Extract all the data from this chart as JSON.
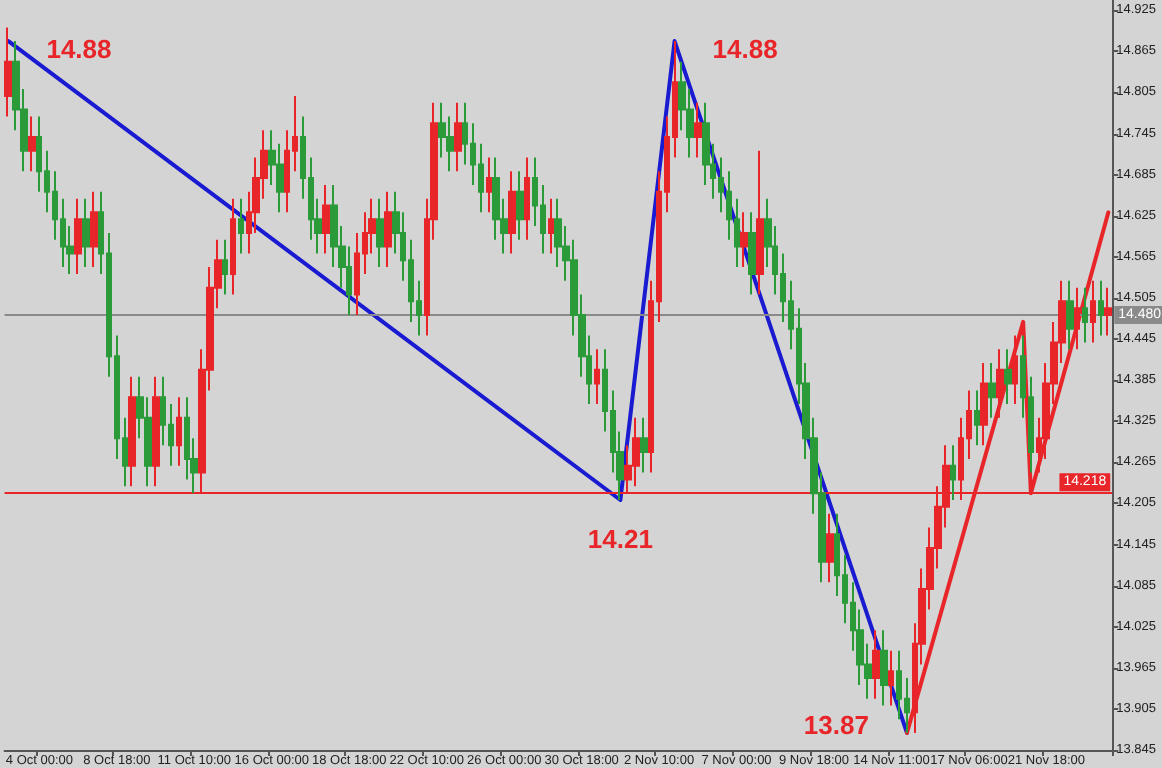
{
  "chart_data": {
    "type": "candlestick",
    "categories": [
      null,
      null,
      null,
      null,
      "4 Oct 00:00",
      null,
      null,
      null,
      null,
      null,
      null,
      null,
      null,
      null,
      "8 Oct 18:00",
      null,
      null,
      null,
      null,
      null,
      null,
      null,
      null,
      null,
      "11 Oct 10:00",
      null,
      null,
      null,
      null,
      null,
      null,
      null,
      null,
      null,
      "16 Oct 00:00",
      null,
      null,
      null,
      null,
      null,
      null,
      null,
      null,
      null,
      "18 Oct 18:00",
      null,
      null,
      null,
      null,
      null,
      null,
      null,
      null,
      null,
      "22 Oct 10:00",
      null,
      null,
      null,
      null,
      null,
      null,
      null,
      null,
      null,
      "26 Oct 00:00",
      null,
      null,
      null,
      null,
      null,
      null,
      null,
      null,
      null,
      "30 Oct 18:00",
      null,
      null,
      null,
      null,
      null,
      null,
      null,
      null,
      null,
      "2 Nov 10:00",
      null,
      null,
      null,
      null,
      null,
      null,
      null,
      null,
      null,
      "7 Nov 00:00",
      null,
      null,
      null,
      null,
      null,
      null,
      null,
      null,
      null,
      "9 Nov 18:00",
      null,
      null,
      null,
      null,
      null,
      null,
      null,
      null,
      null,
      "14 Nov 11:00",
      null,
      null,
      null,
      null,
      null,
      null,
      null,
      null,
      null,
      "17 Nov 06:00",
      null,
      null,
      null,
      null,
      null,
      null,
      null,
      null,
      null,
      "21 Nov 18:00",
      null,
      null,
      null,
      null,
      null,
      null,
      null,
      null
    ],
    "ohlc": [
      [
        14.8,
        14.9,
        14.77,
        14.85
      ],
      [
        14.85,
        14.88,
        14.75,
        14.78
      ],
      [
        14.78,
        14.81,
        14.69,
        14.72
      ],
      [
        14.72,
        14.77,
        14.69,
        14.74
      ],
      [
        14.74,
        14.77,
        14.66,
        14.69
      ],
      [
        14.69,
        14.72,
        14.63,
        14.66
      ],
      [
        14.66,
        14.69,
        14.59,
        14.62
      ],
      [
        14.62,
        14.65,
        14.55,
        14.58
      ],
      [
        14.58,
        14.61,
        14.54,
        14.57
      ],
      [
        14.57,
        14.65,
        14.54,
        14.62
      ],
      [
        14.62,
        14.65,
        14.55,
        14.58
      ],
      [
        14.58,
        14.66,
        14.55,
        14.63
      ],
      [
        14.63,
        14.66,
        14.54,
        14.57
      ],
      [
        14.57,
        14.6,
        14.39,
        14.42
      ],
      [
        14.42,
        14.45,
        14.27,
        14.3
      ],
      [
        14.3,
        14.33,
        14.23,
        14.26
      ],
      [
        14.26,
        14.39,
        14.23,
        14.36
      ],
      [
        14.36,
        14.39,
        14.3,
        14.33
      ],
      [
        14.33,
        14.36,
        14.23,
        14.26
      ],
      [
        14.26,
        14.39,
        14.23,
        14.36
      ],
      [
        14.36,
        14.39,
        14.29,
        14.32
      ],
      [
        14.32,
        14.35,
        14.26,
        14.29
      ],
      [
        14.29,
        14.36,
        14.26,
        14.33
      ],
      [
        14.33,
        14.36,
        14.24,
        14.27
      ],
      [
        14.27,
        14.3,
        14.22,
        14.25
      ],
      [
        14.25,
        14.43,
        14.22,
        14.4
      ],
      [
        14.4,
        14.55,
        14.37,
        14.52
      ],
      [
        14.52,
        14.59,
        14.49,
        14.56
      ],
      [
        14.56,
        14.59,
        14.51,
        14.54
      ],
      [
        14.54,
        14.65,
        14.51,
        14.62
      ],
      [
        14.62,
        14.65,
        14.57,
        14.6
      ],
      [
        14.6,
        14.66,
        14.57,
        14.63
      ],
      [
        14.63,
        14.71,
        14.6,
        14.68
      ],
      [
        14.68,
        14.75,
        14.65,
        14.72
      ],
      [
        14.72,
        14.75,
        14.67,
        14.7
      ],
      [
        14.7,
        14.73,
        14.63,
        14.66
      ],
      [
        14.66,
        14.75,
        14.63,
        14.72
      ],
      [
        14.72,
        14.8,
        14.69,
        14.74
      ],
      [
        14.74,
        14.77,
        14.65,
        14.68
      ],
      [
        14.68,
        14.71,
        14.59,
        14.62
      ],
      [
        14.62,
        14.65,
        14.57,
        14.6
      ],
      [
        14.6,
        14.67,
        14.57,
        14.64
      ],
      [
        14.64,
        14.67,
        14.55,
        14.58
      ],
      [
        14.58,
        14.61,
        14.52,
        14.55
      ],
      [
        14.55,
        14.58,
        14.48,
        14.51
      ],
      [
        14.51,
        14.6,
        14.48,
        14.57
      ],
      [
        14.57,
        14.63,
        14.54,
        14.6
      ],
      [
        14.6,
        14.65,
        14.57,
        14.62
      ],
      [
        14.62,
        14.65,
        14.55,
        14.58
      ],
      [
        14.58,
        14.66,
        14.55,
        14.63
      ],
      [
        14.63,
        14.66,
        14.57,
        14.6
      ],
      [
        14.6,
        14.63,
        14.53,
        14.56
      ],
      [
        14.56,
        14.59,
        14.47,
        14.5
      ],
      [
        14.5,
        14.53,
        14.45,
        14.48
      ],
      [
        14.48,
        14.65,
        14.45,
        14.62
      ],
      [
        14.62,
        14.79,
        14.59,
        14.76
      ],
      [
        14.76,
        14.79,
        14.71,
        14.74
      ],
      [
        14.74,
        14.77,
        14.69,
        14.72
      ],
      [
        14.72,
        14.79,
        14.69,
        14.76
      ],
      [
        14.76,
        14.79,
        14.7,
        14.73
      ],
      [
        14.73,
        14.76,
        14.67,
        14.7
      ],
      [
        14.7,
        14.73,
        14.63,
        14.66
      ],
      [
        14.66,
        14.71,
        14.63,
        14.68
      ],
      [
        14.68,
        14.71,
        14.59,
        14.62
      ],
      [
        14.62,
        14.65,
        14.57,
        14.6
      ],
      [
        14.6,
        14.69,
        14.57,
        14.66
      ],
      [
        14.66,
        14.69,
        14.59,
        14.62
      ],
      [
        14.62,
        14.71,
        14.59,
        14.68
      ],
      [
        14.68,
        14.71,
        14.61,
        14.64
      ],
      [
        14.64,
        14.67,
        14.57,
        14.6
      ],
      [
        14.6,
        14.65,
        14.57,
        14.62
      ],
      [
        14.62,
        14.65,
        14.55,
        14.58
      ],
      [
        14.58,
        14.61,
        14.53,
        14.56
      ],
      [
        14.56,
        14.59,
        14.45,
        14.48
      ],
      [
        14.48,
        14.51,
        14.39,
        14.42
      ],
      [
        14.42,
        14.45,
        14.35,
        14.38
      ],
      [
        14.38,
        14.43,
        14.35,
        14.4
      ],
      [
        14.4,
        14.43,
        14.31,
        14.34
      ],
      [
        14.34,
        14.37,
        14.25,
        14.28
      ],
      [
        14.28,
        14.31,
        14.21,
        14.24
      ],
      [
        14.24,
        14.29,
        14.22,
        14.26
      ],
      [
        14.26,
        14.33,
        14.23,
        14.3
      ],
      [
        14.3,
        14.33,
        14.25,
        14.28
      ],
      [
        14.28,
        14.53,
        14.25,
        14.5
      ],
      [
        14.5,
        14.69,
        14.47,
        14.66
      ],
      [
        14.66,
        14.77,
        14.63,
        14.74
      ],
      [
        14.74,
        14.88,
        14.71,
        14.82
      ],
      [
        14.82,
        14.85,
        14.75,
        14.78
      ],
      [
        14.78,
        14.81,
        14.71,
        14.74
      ],
      [
        14.74,
        14.79,
        14.71,
        14.76
      ],
      [
        14.76,
        14.79,
        14.67,
        14.7
      ],
      [
        14.7,
        14.73,
        14.65,
        14.68
      ],
      [
        14.68,
        14.71,
        14.63,
        14.66
      ],
      [
        14.66,
        14.69,
        14.59,
        14.62
      ],
      [
        14.62,
        14.65,
        14.55,
        14.58
      ],
      [
        14.58,
        14.63,
        14.55,
        14.6
      ],
      [
        14.6,
        14.63,
        14.51,
        14.54
      ],
      [
        14.54,
        14.72,
        14.51,
        14.62
      ],
      [
        14.62,
        14.65,
        14.55,
        14.58
      ],
      [
        14.58,
        14.61,
        14.51,
        14.54
      ],
      [
        14.54,
        14.57,
        14.47,
        14.5
      ],
      [
        14.5,
        14.53,
        14.43,
        14.46
      ],
      [
        14.46,
        14.49,
        14.35,
        14.38
      ],
      [
        14.38,
        14.41,
        14.27,
        14.3
      ],
      [
        14.3,
        14.33,
        14.19,
        14.22
      ],
      [
        14.22,
        14.25,
        14.09,
        14.12
      ],
      [
        14.12,
        14.19,
        14.09,
        14.16
      ],
      [
        14.16,
        14.19,
        14.07,
        14.1
      ],
      [
        14.1,
        14.13,
        14.03,
        14.06
      ],
      [
        14.06,
        14.09,
        13.99,
        14.02
      ],
      [
        14.02,
        14.05,
        13.94,
        13.97
      ],
      [
        13.97,
        14.0,
        13.92,
        13.95
      ],
      [
        13.95,
        14.02,
        13.92,
        13.99
      ],
      [
        13.99,
        14.02,
        13.91,
        13.94
      ],
      [
        13.94,
        13.99,
        13.91,
        13.96
      ],
      [
        13.96,
        13.99,
        13.89,
        13.92
      ],
      [
        13.92,
        13.95,
        13.87,
        13.9
      ],
      [
        13.9,
        14.03,
        13.87,
        14.0
      ],
      [
        14.0,
        14.11,
        13.97,
        14.08
      ],
      [
        14.08,
        14.17,
        14.05,
        14.14
      ],
      [
        14.14,
        14.23,
        14.11,
        14.2
      ],
      [
        14.2,
        14.29,
        14.17,
        14.26
      ],
      [
        14.26,
        14.29,
        14.21,
        14.24
      ],
      [
        14.24,
        14.33,
        14.21,
        14.3
      ],
      [
        14.3,
        14.37,
        14.27,
        14.34
      ],
      [
        14.34,
        14.37,
        14.29,
        14.32
      ],
      [
        14.32,
        14.41,
        14.29,
        14.38
      ],
      [
        14.38,
        14.41,
        14.33,
        14.36
      ],
      [
        14.36,
        14.43,
        14.33,
        14.4
      ],
      [
        14.4,
        14.43,
        14.35,
        14.38
      ],
      [
        14.38,
        14.45,
        14.35,
        14.42
      ],
      [
        14.42,
        14.45,
        14.33,
        14.36
      ],
      [
        14.36,
        14.39,
        14.25,
        14.28
      ],
      [
        14.28,
        14.33,
        14.25,
        14.3
      ],
      [
        14.3,
        14.41,
        14.27,
        14.38
      ],
      [
        14.38,
        14.47,
        14.35,
        14.44
      ],
      [
        14.44,
        14.53,
        14.41,
        14.5
      ],
      [
        14.5,
        14.53,
        14.43,
        14.46
      ],
      [
        14.46,
        14.52,
        14.43,
        14.49
      ],
      [
        14.49,
        14.52,
        14.44,
        14.47
      ],
      [
        14.47,
        14.53,
        14.44,
        14.5
      ],
      [
        14.5,
        14.53,
        14.45,
        14.48
      ],
      [
        14.48,
        14.52,
        14.45,
        14.49
      ]
    ],
    "series": [
      {
        "type": "line",
        "color": "#1a1ad0",
        "values": [
          14.88,
          null,
          null,
          null,
          null,
          null,
          null,
          null,
          null,
          null,
          null,
          null,
          null,
          null,
          null,
          null,
          null,
          null,
          null,
          null,
          null,
          null,
          null,
          null,
          null,
          null,
          null,
          null,
          null,
          null,
          null,
          null,
          null,
          null,
          null,
          null,
          null,
          null,
          null,
          null,
          null,
          null,
          null,
          null,
          null,
          null,
          null,
          null,
          null,
          null,
          null,
          null,
          null,
          null,
          null,
          null,
          null,
          null,
          null,
          null,
          null,
          null,
          null,
          null,
          null,
          null,
          null,
          null,
          null,
          null,
          null,
          null,
          null,
          null,
          null,
          null,
          null,
          null,
          null,
          14.21,
          null,
          null,
          null,
          null,
          null,
          null,
          14.88,
          null,
          null,
          null,
          null,
          null,
          null,
          null,
          null,
          null,
          null,
          null,
          null,
          null,
          null,
          null,
          null,
          null,
          null,
          null,
          null,
          null,
          null,
          null,
          null,
          null,
          null,
          null,
          null,
          null,
          13.87,
          null,
          null,
          null,
          null,
          null,
          null,
          null,
          null,
          null,
          null,
          null,
          null,
          null,
          null,
          null,
          null,
          null,
          null,
          null,
          null,
          null,
          null,
          null,
          null,
          null,
          null
        ],
        "value_labels": [
          "14.88",
          null,
          null,
          null,
          null,
          null,
          null,
          null,
          null,
          null,
          null,
          null,
          null,
          null,
          null,
          null,
          null,
          null,
          null,
          null,
          null,
          null,
          null,
          null,
          null,
          null,
          null,
          null,
          null,
          null,
          null,
          null,
          null,
          null,
          null,
          null,
          null,
          null,
          null,
          null,
          null,
          null,
          null,
          null,
          null,
          null,
          null,
          null,
          null,
          null,
          null,
          null,
          null,
          null,
          null,
          null,
          null,
          null,
          null,
          null,
          null,
          null,
          null,
          null,
          null,
          null,
          null,
          null,
          null,
          null,
          null,
          null,
          null,
          null,
          null,
          null,
          null,
          null,
          null,
          "14.21",
          null,
          null,
          null,
          null,
          null,
          null,
          "14.88",
          null,
          null,
          null,
          null,
          null,
          null,
          null,
          null,
          null,
          null,
          null,
          null,
          null,
          null,
          null,
          null,
          null,
          null,
          null,
          null,
          null,
          null,
          null,
          null,
          null,
          null,
          null,
          null,
          null,
          "13.87",
          null,
          null,
          null,
          null,
          null,
          null,
          null,
          null,
          null,
          null,
          null,
          null,
          null,
          null,
          null,
          null,
          null,
          null,
          null,
          null,
          null,
          null,
          null,
          null,
          null,
          null
        ]
      },
      {
        "type": "line",
        "color": "#e8262a",
        "values": [
          null,
          null,
          null,
          null,
          null,
          null,
          null,
          null,
          null,
          null,
          null,
          null,
          null,
          null,
          null,
          null,
          null,
          null,
          null,
          null,
          null,
          null,
          null,
          null,
          null,
          null,
          null,
          null,
          null,
          null,
          null,
          null,
          null,
          null,
          null,
          null,
          null,
          null,
          null,
          null,
          null,
          null,
          null,
          null,
          null,
          null,
          null,
          null,
          null,
          null,
          null,
          null,
          null,
          null,
          null,
          null,
          null,
          null,
          null,
          null,
          null,
          null,
          null,
          null,
          null,
          null,
          null,
          null,
          null,
          null,
          null,
          null,
          null,
          null,
          null,
          null,
          null,
          null,
          null,
          null,
          null,
          null,
          null,
          null,
          null,
          null,
          null,
          null,
          null,
          null,
          null,
          null,
          null,
          null,
          null,
          null,
          null,
          null,
          null,
          null,
          null,
          null,
          null,
          null,
          null,
          null,
          null,
          null,
          null,
          null,
          null,
          null,
          null,
          null,
          null,
          null,
          13.87,
          null,
          null,
          null,
          null,
          null,
          null,
          null,
          null,
          null,
          null,
          null,
          null,
          null,
          null,
          14.47,
          14.22,
          null,
          null,
          null,
          null,
          null,
          null,
          null,
          null,
          null,
          14.63
        ]
      }
    ],
    "ylim": [
      13.845,
      14.94
    ],
    "yticks": [
      14.925,
      14.865,
      14.805,
      14.745,
      14.685,
      14.625,
      14.565,
      14.505,
      14.445,
      14.385,
      14.325,
      14.265,
      14.205,
      14.145,
      14.085,
      14.025,
      13.965,
      13.905,
      13.845
    ],
    "ref_lines": [
      {
        "axis": "y",
        "value": 14.218,
        "label": "14.218",
        "color": "#e8262a"
      },
      {
        "axis": "y",
        "value": 14.48,
        "label": "14.480",
        "color": "#8a8a8a"
      }
    ]
  }
}
